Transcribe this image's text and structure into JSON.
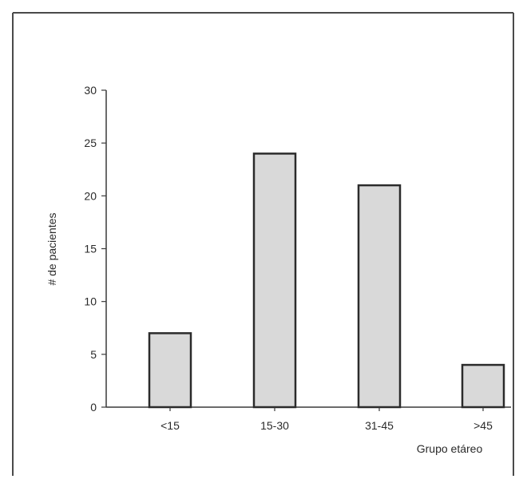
{
  "chart_data": {
    "type": "bar",
    "categories": [
      "<15",
      "15-30",
      "31-45",
      ">45"
    ],
    "values": [
      7,
      24,
      21,
      4
    ],
    "xlabel": "Grupo etáreo",
    "ylabel": "# de pacientes",
    "ylim": [
      0,
      30
    ],
    "yticks": [
      "0",
      "5",
      "10",
      "15",
      "20",
      "25",
      "30"
    ],
    "grid": false,
    "legend": "none",
    "colors": {
      "bar_fill": "#d9d9d9",
      "bar_stroke": "#2b2b2b",
      "axis": "#3a3a3a",
      "frame": "#4a4a4a"
    }
  }
}
